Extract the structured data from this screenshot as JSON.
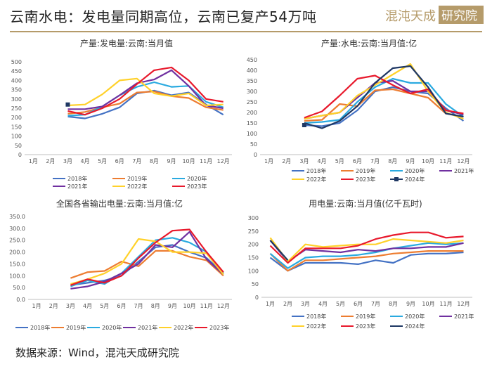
{
  "header": {
    "title": "云南水电：发电量同期高位，云南已复产54万吨",
    "logo_text": "混沌天成研究院"
  },
  "footer": {
    "source": "数据来源：Wind，混沌天成研究院"
  },
  "palette": {
    "2018年": "#4472c4",
    "2019年": "#ed7d31",
    "2020年": "#2aaae0",
    "2021年": "#7030a0",
    "2022年": "#ffd12a",
    "2023年": "#e8192c",
    "2024年": "#1f3864"
  },
  "chart_data": [
    {
      "type": "line",
      "title": "产量:发电量:云南:当月值",
      "categories": [
        "1月",
        "2月",
        "3月",
        "4月",
        "5月",
        "6月",
        "7月",
        "8月",
        "9月",
        "10月",
        "11月",
        "12月"
      ],
      "ylim": [
        0,
        500
      ],
      "yticks": [
        "0",
        "50",
        "100",
        "150",
        "200",
        "250",
        "300",
        "350",
        "400",
        "450",
        "500"
      ],
      "series": [
        {
          "name": "2018年",
          "values": [
            null,
            null,
            205,
            195,
            220,
            255,
            330,
            345,
            320,
            335,
            270,
            215
          ]
        },
        {
          "name": "2019年",
          "values": [
            null,
            null,
            220,
            230,
            255,
            275,
            335,
            340,
            315,
            305,
            255,
            240
          ]
        },
        {
          "name": "2020年",
          "values": [
            null,
            null,
            210,
            215,
            260,
            320,
            365,
            390,
            365,
            370,
            285,
            255
          ]
        },
        {
          "name": "2021年",
          "values": [
            null,
            null,
            245,
            245,
            260,
            320,
            385,
            405,
            455,
            370,
            265,
            250
          ]
        },
        {
          "name": "2022年",
          "values": [
            null,
            null,
            265,
            270,
            325,
            400,
            410,
            330,
            315,
            330,
            265,
            270
          ]
        },
        {
          "name": "2023年",
          "values": [
            null,
            null,
            235,
            215,
            250,
            300,
            380,
            455,
            470,
            400,
            300,
            285
          ]
        },
        {
          "name": "2024年",
          "values": [
            null,
            null,
            270,
            null,
            null,
            null,
            null,
            null,
            null,
            null,
            null,
            null
          ]
        }
      ],
      "legend": [
        "2018年",
        "2019年",
        "2020年",
        "2021年",
        "2022年",
        "2023年"
      ]
    },
    {
      "type": "line",
      "title": "产量:水电:云南:当月值:亿",
      "categories": [
        "1月",
        "2月",
        "3月",
        "4月",
        "5月",
        "6月",
        "7月",
        "8月",
        "9月",
        "10月",
        "11月",
        "12月"
      ],
      "ylim": [
        0,
        450
      ],
      "yticks": [
        "0",
        "50",
        "100",
        "150",
        "200",
        "250",
        "300",
        "350",
        "400",
        "450"
      ],
      "series": [
        {
          "name": "2018年",
          "values": [
            null,
            null,
            140,
            135,
            150,
            210,
            300,
            320,
            300,
            290,
            220,
            160
          ]
        },
        {
          "name": "2019年",
          "values": [
            null,
            null,
            160,
            165,
            240,
            230,
            305,
            310,
            290,
            270,
            195,
            180
          ]
        },
        {
          "name": "2020年",
          "values": [
            null,
            null,
            150,
            155,
            165,
            250,
            320,
            360,
            340,
            340,
            240,
            180
          ]
        },
        {
          "name": "2021年",
          "values": [
            null,
            null,
            170,
            185,
            200,
            270,
            340,
            350,
            300,
            300,
            210,
            190
          ]
        },
        {
          "name": "2022年",
          "values": [
            null,
            null,
            170,
            185,
            200,
            280,
            330,
            380,
            430,
            300,
            200,
            170
          ]
        },
        {
          "name": "2023年",
          "values": [
            null,
            null,
            175,
            205,
            280,
            360,
            375,
            330,
            290,
            310,
            210,
            195
          ]
        },
        {
          "name": "2024年",
          "values": [
            null,
            null,
            150,
            125,
            160,
            230,
            340,
            410,
            420,
            320,
            195,
            180
          ]
        },
        {
          "name": "2024年",
          "values": [
            null,
            null,
            140,
            null,
            null,
            null,
            null,
            null,
            null,
            null,
            null,
            null
          ]
        }
      ],
      "series_names_note": "",
      "legend": [
        "2018年",
        "2019年",
        "2020年",
        "2021年",
        "2022年",
        "2023年",
        "2024年"
      ]
    },
    {
      "type": "line",
      "title": "全国各省输出电量:云南:当月值:亿",
      "categories": [
        "1月",
        "2月",
        "3月",
        "4月",
        "5月",
        "6月",
        "7月",
        "8月",
        "9月",
        "10月",
        "11月",
        "12月"
      ],
      "ylim": [
        0,
        350
      ],
      "yticks": [
        "0.0",
        "50.0",
        "100.0",
        "150.0",
        "200.0",
        "250.0",
        "300.0",
        "350.0"
      ],
      "series": [
        {
          "name": "2018年",
          "values": [
            null,
            null,
            60,
            70,
            80,
            100,
            160,
            220,
            230,
            200,
            175,
            110
          ]
        },
        {
          "name": "2019年",
          "values": [
            null,
            null,
            90,
            115,
            120,
            160,
            140,
            205,
            205,
            180,
            165,
            100
          ]
        },
        {
          "name": "2020年",
          "values": [
            null,
            null,
            55,
            80,
            65,
            110,
            180,
            250,
            260,
            240,
            200,
            110
          ]
        },
        {
          "name": "2021年",
          "values": [
            null,
            null,
            45,
            55,
            75,
            110,
            150,
            230,
            220,
            285,
            170,
            105
          ]
        },
        {
          "name": "2022年",
          "values": [
            null,
            null,
            65,
            85,
            110,
            150,
            255,
            245,
            200,
            200,
            195,
            105
          ]
        },
        {
          "name": "2023年",
          "values": [
            null,
            null,
            60,
            85,
            70,
            100,
            175,
            240,
            290,
            295,
            200,
            115
          ]
        }
      ],
      "legend": [
        "2018年",
        "2019年",
        "2020年",
        "2021年",
        "2022年",
        "2023年"
      ]
    },
    {
      "type": "line",
      "title": "用电量:云南:当月值(亿千瓦时)",
      "categories": [
        "1月",
        "2月",
        "3月",
        "4月",
        "5月",
        "6月",
        "7月",
        "8月",
        "9月",
        "10月",
        "11月",
        "12月"
      ],
      "ylim": [
        0,
        300
      ],
      "yticks": [
        "0",
        "50",
        "100",
        "150",
        "200",
        "250",
        "300"
      ],
      "series": [
        {
          "name": "2018年",
          "values": [
            150,
            100,
            130,
            130,
            130,
            125,
            140,
            130,
            160,
            165,
            165,
            170
          ]
        },
        {
          "name": "2019年",
          "values": [
            165,
            100,
            140,
            140,
            145,
            150,
            155,
            165,
            170,
            175,
            175,
            175
          ]
        },
        {
          "name": "2020年",
          "values": [
            165,
            110,
            150,
            155,
            155,
            160,
            170,
            185,
            195,
            205,
            200,
            205
          ]
        },
        {
          "name": "2021年",
          "values": [
            215,
            135,
            180,
            175,
            170,
            180,
            175,
            185,
            185,
            190,
            190,
            205
          ]
        },
        {
          "name": "2022年",
          "values": [
            225,
            135,
            200,
            190,
            195,
            200,
            200,
            220,
            215,
            210,
            205,
            215
          ]
        },
        {
          "name": "2023年",
          "values": [
            195,
            130,
            185,
            185,
            185,
            195,
            220,
            235,
            245,
            245,
            225,
            230
          ]
        },
        {
          "name": "2024年",
          "values": [
            215,
            140,
            null,
            null,
            null,
            null,
            null,
            null,
            null,
            null,
            null,
            null
          ]
        }
      ],
      "legend": [
        "2018年",
        "2019年",
        "2020年",
        "2021年",
        "2022年",
        "2023年",
        "2024年"
      ]
    }
  ]
}
